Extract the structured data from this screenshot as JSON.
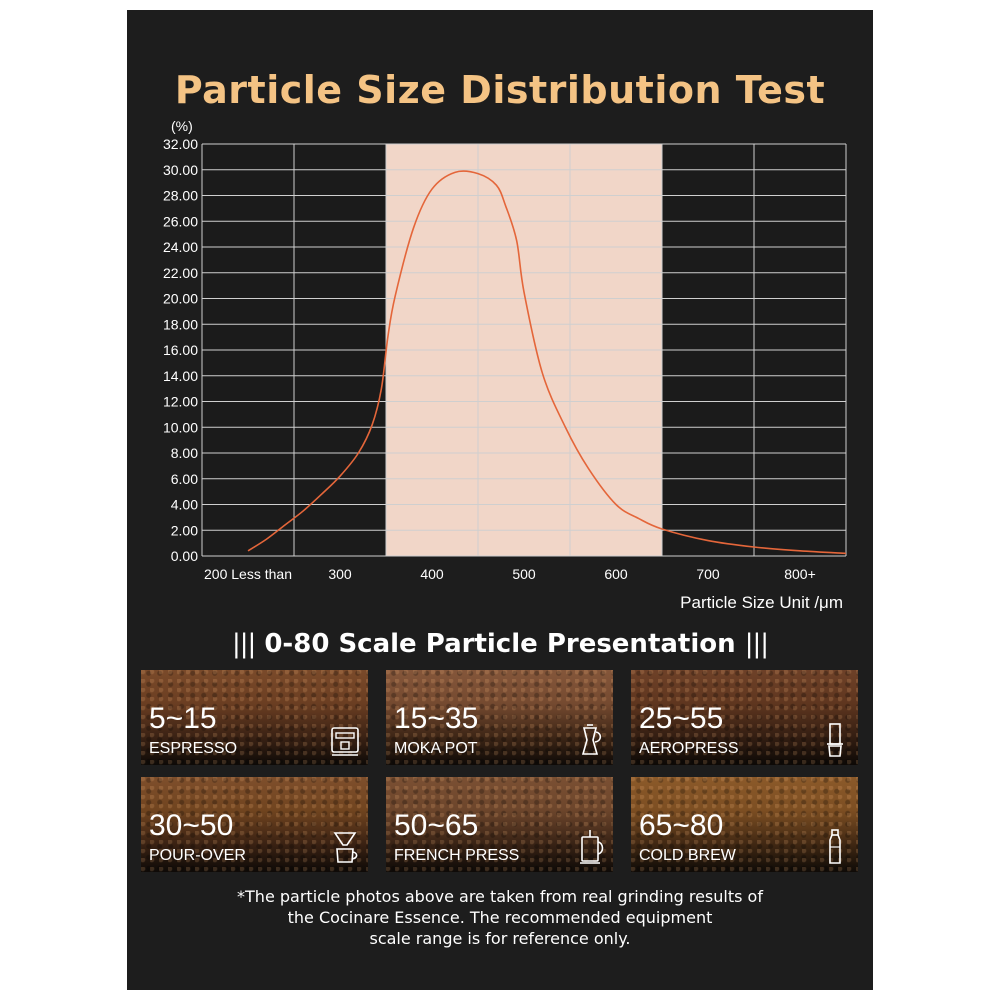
{
  "title": "Particle Size Distribution Test",
  "chart_data": {
    "type": "line",
    "yunit": "(%)",
    "yticks": [
      "32.00",
      "30.00",
      "28.00",
      "26.00",
      "24.00",
      "22.00",
      "20.00",
      "18.00",
      "16.00",
      "14.00",
      "12.00",
      "10.00",
      "8.00",
      "6.00",
      "4.00",
      "2.00",
      "0.00"
    ],
    "ylim": [
      0,
      32
    ],
    "xticks": [
      {
        "label": "200 Less than",
        "value": 200
      },
      {
        "label": "300",
        "value": 300
      },
      {
        "label": "400",
        "value": 400
      },
      {
        "label": "500",
        "value": 500
      },
      {
        "label": "600",
        "value": 600
      },
      {
        "label": "700",
        "value": 700
      },
      {
        "label": "800+",
        "value": 800
      }
    ],
    "xlim": [
      150,
      850
    ],
    "xlabel": "Particle Size Unit /μm",
    "highlight_range": [
      350,
      650
    ],
    "grid": true,
    "line_color": "#e4663a",
    "highlight_color": "#f1d6c8",
    "series": [
      {
        "x": [
          200,
          220,
          240,
          260,
          280,
          300,
          320,
          335,
          345,
          352,
          360,
          380,
          400,
          425,
          450,
          470,
          480,
          492,
          500,
          520,
          545,
          570,
          600,
          625,
          650,
          700,
          750,
          800,
          850
        ],
        "y": [
          0.4,
          1.3,
          2.4,
          3.5,
          4.8,
          6.2,
          8.0,
          10.2,
          13.0,
          17.0,
          20.2,
          25.5,
          28.5,
          29.8,
          29.7,
          28.8,
          27.2,
          24.5,
          20.5,
          14.2,
          10.0,
          6.8,
          4.0,
          2.9,
          2.1,
          1.2,
          0.7,
          0.4,
          0.2
        ]
      }
    ]
  },
  "section": {
    "left_bars": "|||",
    "title": "0-80 Scale Particle Presentation",
    "right_bars": "|||"
  },
  "tiles": [
    {
      "range": "5~15",
      "method": "ESPRESSO",
      "icon": "espresso-machine-icon"
    },
    {
      "range": "15~35",
      "method": "MOKA POT",
      "icon": "moka-pot-icon"
    },
    {
      "range": "25~55",
      "method": "AEROPRESS",
      "icon": "aeropress-icon"
    },
    {
      "range": "30~50",
      "method": "POUR-OVER",
      "icon": "pour-over-icon"
    },
    {
      "range": "50~65",
      "method": "FRENCH PRESS",
      "icon": "french-press-icon"
    },
    {
      "range": "65~80",
      "method": "COLD BREW",
      "icon": "cold-brew-bottle-icon"
    }
  ],
  "footnote": [
    "*The particle photos above are taken from real grinding results of",
    "the Cocinare Essence. The recommended equipment",
    "scale range is for reference only."
  ]
}
